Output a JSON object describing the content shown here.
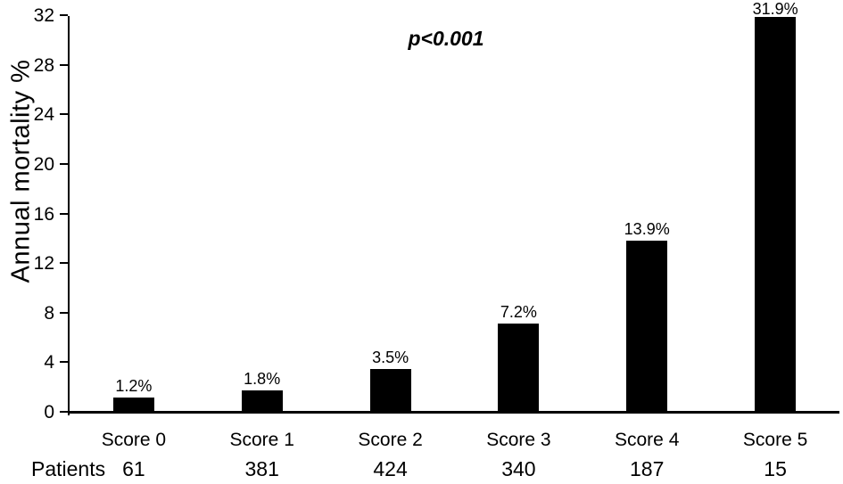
{
  "chart_data": {
    "type": "bar",
    "title": "",
    "xlabel": "",
    "ylabel": "Annual mortality %",
    "annotation": "p<0.001",
    "categories": [
      "Score 0",
      "Score 1",
      "Score 2",
      "Score 3",
      "Score 4",
      "Score 5"
    ],
    "values": [
      1.2,
      1.8,
      3.5,
      7.2,
      13.9,
      31.9
    ],
    "bar_labels": [
      "1.2%",
      "1.8%",
      "3.5%",
      "7.2%",
      "13.9%",
      "31.9%"
    ],
    "patients_label": "Patients",
    "patients": [
      "61",
      "381",
      "424",
      "340",
      "187",
      "15"
    ],
    "ylim": [
      0,
      32
    ],
    "yticks": [
      0,
      4,
      8,
      12,
      16,
      20,
      24,
      28,
      32
    ],
    "grid": false,
    "legend": "none",
    "bar_color": "#000000",
    "axis_color": "#000000",
    "text_color": "#000000",
    "background_color": "#ffffff"
  }
}
